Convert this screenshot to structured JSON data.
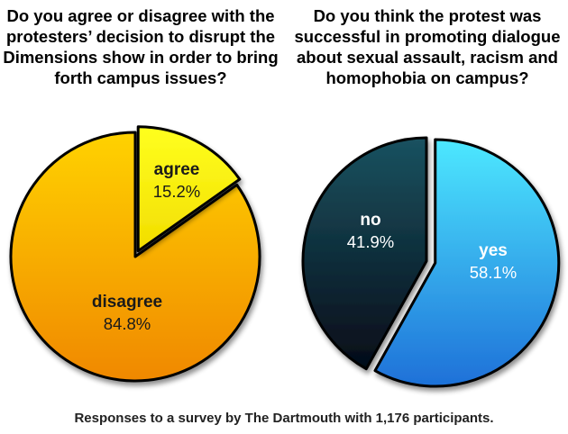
{
  "chart_data": [
    {
      "type": "pie",
      "title": "Do you agree or disagree with the protesters’ decision to disrupt the Dimensions show in order to bring forth campus issues?",
      "slices": [
        {
          "label": "agree",
          "value": 15.2,
          "value_label": "15.2%",
          "exploded": true
        },
        {
          "label": "disagree",
          "value": 84.8,
          "value_label": "84.8%",
          "exploded": false
        }
      ]
    },
    {
      "type": "pie",
      "title": "Do you think the protest was successful in promoting dialogue about sexual assault, racism and homophobia on campus?",
      "slices": [
        {
          "label": "yes",
          "value": 58.1,
          "value_label": "58.1%",
          "exploded": true
        },
        {
          "label": "no",
          "value": 41.9,
          "value_label": "41.9%",
          "exploded": false
        }
      ]
    }
  ],
  "colors": {
    "agree_fill_light": "#ffff1f",
    "agree_fill_dark": "#f2dd00",
    "disagree_fill_light": "#ffd200",
    "disagree_fill_dark": "#f08800",
    "yes_fill_light": "#4de8ff",
    "yes_fill_dark": "#1e70d8",
    "no_fill_light": "#1a5260",
    "no_fill_dark": "#050c18",
    "dark_text": "#1a1a1a",
    "light_text": "#ffffff",
    "outline": "#000000"
  },
  "footnote": "Responses to a survey by The Dartmouth with 1,176 participants."
}
